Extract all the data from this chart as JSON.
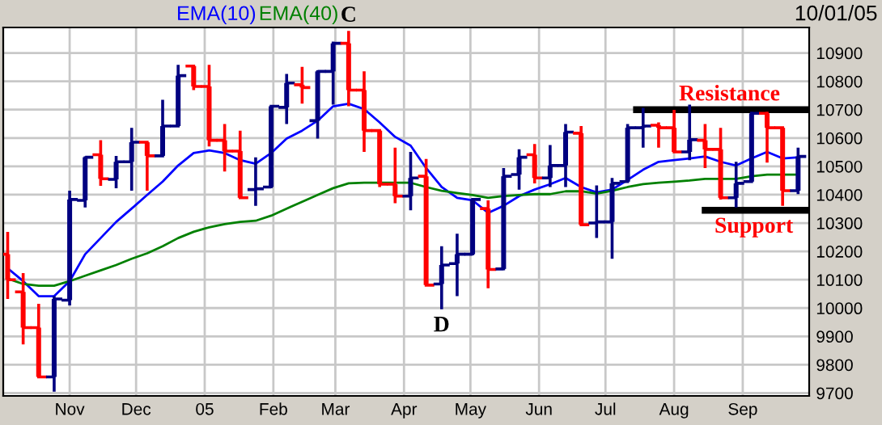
{
  "chart_data": {
    "type": "candlestick",
    "x": [
      "2004-10-04",
      "2004-10-11",
      "2004-10-18",
      "2004-10-25",
      "2004-11-01",
      "2004-11-08",
      "2004-11-15",
      "2004-11-22",
      "2004-11-29",
      "2004-12-06",
      "2004-12-13",
      "2004-12-20",
      "2004-12-27",
      "2005-01-03",
      "2005-01-10",
      "2005-01-17",
      "2005-01-24",
      "2005-01-31",
      "2005-02-07",
      "2005-02-14",
      "2005-02-21",
      "2005-02-28",
      "2005-03-07",
      "2005-03-14",
      "2005-03-21",
      "2005-03-28",
      "2005-04-04",
      "2005-04-11",
      "2005-04-18",
      "2005-04-25",
      "2005-05-02",
      "2005-05-09",
      "2005-05-16",
      "2005-05-23",
      "2005-05-30",
      "2005-06-06",
      "2005-06-13",
      "2005-06-20",
      "2005-06-27",
      "2005-07-04",
      "2005-07-11",
      "2005-07-18",
      "2005-07-25",
      "2005-08-01",
      "2005-08-08",
      "2005-08-15",
      "2005-08-22",
      "2005-08-29",
      "2005-09-05",
      "2005-09-12",
      "2005-09-19",
      "2005-09-26"
    ],
    "ohlc": [
      [
        10190,
        10269,
        10032,
        10100
      ],
      [
        10057,
        10123,
        9872,
        9931
      ],
      [
        9931,
        10015,
        9753,
        9757
      ],
      [
        9757,
        10042,
        9705,
        10032
      ],
      [
        10028,
        10414,
        10009,
        10383
      ],
      [
        10380,
        10535,
        10355,
        10532
      ],
      [
        10541,
        10592,
        10431,
        10456
      ],
      [
        10454,
        10537,
        10423,
        10516
      ],
      [
        10516,
        10636,
        10414,
        10585
      ],
      [
        10585,
        10585,
        10414,
        10537
      ],
      [
        10537,
        10735,
        10537,
        10642
      ],
      [
        10642,
        10858,
        10642,
        10820
      ],
      [
        10854,
        10854,
        10769,
        10782
      ],
      [
        10782,
        10858,
        10570,
        10592
      ],
      [
        10592,
        10649,
        10482,
        10554
      ],
      [
        10554,
        10626,
        10385,
        10389
      ],
      [
        10418,
        10532,
        10361,
        10421
      ],
      [
        10427,
        10712,
        10423,
        10712
      ],
      [
        10708,
        10826,
        10649,
        10794
      ],
      [
        10788,
        10851,
        10721,
        10778
      ],
      [
        10661,
        10839,
        10598,
        10835
      ],
      [
        10835,
        10940,
        10718,
        10934
      ],
      [
        10934,
        10978,
        10712,
        10769
      ],
      [
        10769,
        10835,
        10551,
        10626
      ],
      [
        10626,
        10626,
        10427,
        10437
      ],
      [
        10437,
        10566,
        10370,
        10395
      ],
      [
        10395,
        10551,
        10345,
        10459
      ],
      [
        10465,
        10526,
        10076,
        10081
      ],
      [
        10085,
        10218,
        9996,
        10152
      ],
      [
        10157,
        10262,
        10042,
        10190
      ],
      [
        10190,
        10383,
        10186,
        10383
      ],
      [
        10351,
        10380,
        10070,
        10136
      ],
      [
        10138,
        10494,
        10133,
        10465
      ],
      [
        10471,
        10560,
        10418,
        10532
      ],
      [
        10541,
        10579,
        10440,
        10459
      ],
      [
        10459,
        10575,
        10427,
        10503
      ],
      [
        10503,
        10649,
        10427,
        10621
      ],
      [
        10617,
        10642,
        10294,
        10294
      ],
      [
        10300,
        10433,
        10247,
        10304
      ],
      [
        10304,
        10459,
        10174,
        10440
      ],
      [
        10446,
        10649,
        10446,
        10636
      ],
      [
        10636,
        10706,
        10566,
        10642
      ],
      [
        10645,
        10655,
        10566,
        10636
      ],
      [
        10636,
        10699,
        10547,
        10551
      ],
      [
        10551,
        10718,
        10522,
        10594
      ],
      [
        10592,
        10649,
        10494,
        10560
      ],
      [
        10560,
        10636,
        10383,
        10389
      ],
      [
        10389,
        10516,
        10355,
        10440
      ],
      [
        10446,
        10693,
        10446,
        10687
      ],
      [
        10687,
        10693,
        10513,
        10636
      ],
      [
        10636,
        10636,
        10361,
        10414
      ],
      [
        10414,
        10566,
        10402,
        10535
      ]
    ],
    "colors": [
      "#ff0000",
      "#ff0000",
      "#ff0000",
      "#000080",
      "#000080",
      "#000080",
      "#ff0000",
      "#000080",
      "#000080",
      "#ff0000",
      "#000080",
      "#000080",
      "#ff0000",
      "#ff0000",
      "#ff0000",
      "#ff0000",
      "#000080",
      "#000080",
      "#000080",
      "#ff0000",
      "#000080",
      "#000080",
      "#ff0000",
      "#ff0000",
      "#ff0000",
      "#ff0000",
      "#000080",
      "#ff0000",
      "#000080",
      "#000080",
      "#000080",
      "#ff0000",
      "#000080",
      "#000080",
      "#ff0000",
      "#000080",
      "#000080",
      "#ff0000",
      "#000080",
      "#000080",
      "#000080",
      "#000080",
      "#ff0000",
      "#ff0000",
      "#000080",
      "#ff0000",
      "#ff0000",
      "#000080",
      "#000080",
      "#ff0000",
      "#ff0000",
      "#000080"
    ],
    "series": [
      {
        "name": "EMA(10)",
        "type": "line",
        "color": "#0000ff",
        "values": [
          10140,
          10095,
          10042,
          10042,
          10095,
          10190,
          10247,
          10304,
          10351,
          10399,
          10446,
          10503,
          10547,
          10556,
          10547,
          10522,
          10509,
          10547,
          10598,
          10626,
          10661,
          10712,
          10721,
          10702,
          10655,
          10604,
          10573,
          10494,
          10427,
          10389,
          10380,
          10336,
          10361,
          10395,
          10418,
          10437,
          10459,
          10427,
          10408,
          10418,
          10452,
          10488,
          10516,
          10522,
          10528,
          10535,
          10516,
          10503,
          10528,
          10551,
          10528,
          10532
        ]
      },
      {
        "name": "EMA(40)",
        "type": "line",
        "color": "#008000",
        "values": [
          10104,
          10085,
          10079,
          10079,
          10095,
          10114,
          10133,
          10152,
          10174,
          10193,
          10218,
          10247,
          10269,
          10285,
          10296,
          10304,
          10308,
          10326,
          10351,
          10375,
          10399,
          10423,
          10440,
          10442,
          10442,
          10442,
          10442,
          10427,
          10414,
          10406,
          10399,
          10389,
          10395,
          10399,
          10402,
          10402,
          10412,
          10412,
          10404,
          10414,
          10427,
          10437,
          10442,
          10446,
          10450,
          10456,
          10456,
          10456,
          10465,
          10471,
          10471,
          10471
        ]
      },
      {
        "type": "line",
        "color": "#000000",
        "x": [
          "2005-07-15",
          "2005-10-01"
        ],
        "values": [
          10700,
          10700
        ]
      },
      {
        "type": "line",
        "color": "#000000",
        "x": [
          "2005-08-15",
          "2005-10-01"
        ],
        "values": [
          10345,
          10345
        ]
      }
    ],
    "annotations": [
      {
        "text": "C",
        "x": "2005-03-07",
        "y": 10978
      },
      {
        "text": "D",
        "x": "2005-04-18",
        "y": 9996
      },
      {
        "text": "Resistance",
        "x": "2005-08-26",
        "y": 10700
      },
      {
        "text": "Support",
        "x": "2005-09-06",
        "y": 10345
      },
      "10/01/05"
    ],
    "xlim": [
      "2004-10-02",
      "2005-10-01"
    ],
    "xticks": [
      {
        "value": "2004-11-01",
        "label": "Nov"
      },
      {
        "value": "2004-12-01",
        "label": "Dec"
      },
      {
        "value": "2005-01-01",
        "label": "05"
      },
      {
        "value": "2005-02-01",
        "label": "Feb"
      },
      {
        "value": "2005-03-01",
        "label": "Mar"
      },
      {
        "value": "2005-04-01",
        "label": "Apr"
      },
      {
        "value": "2005-05-01",
        "label": "May"
      },
      {
        "value": "2005-06-01",
        "label": "Jun"
      },
      {
        "value": "2005-07-01",
        "label": "Jul"
      },
      {
        "value": "2005-08-01",
        "label": "Aug"
      },
      {
        "value": "2005-09-01",
        "label": "Sep"
      }
    ],
    "ylim": [
      9690,
      10990
    ],
    "yticks": [
      9700,
      9800,
      9900,
      10000,
      10100,
      10200,
      10300,
      10400,
      10500,
      10600,
      10700,
      10800,
      10900
    ],
    "grid": true,
    "legend": "top"
  }
}
